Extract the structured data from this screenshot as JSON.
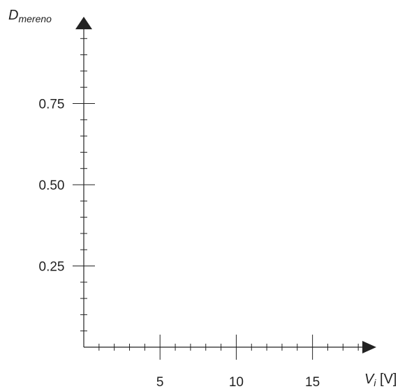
{
  "chart_data": {
    "type": "line",
    "title": "",
    "xlabel": {
      "symbol": "V",
      "subscript": "i",
      "unit": " [V]"
    },
    "ylabel": {
      "symbol": "D",
      "subscript": "mereno"
    },
    "xlim": [
      0,
      19
    ],
    "ylim": [
      0,
      1
    ],
    "x_major_ticks": [
      5,
      10,
      15
    ],
    "x_tick_labels": [
      "5",
      "10",
      "15"
    ],
    "x_minor_step": 1,
    "y_major_ticks": [
      0.25,
      0.5,
      0.75
    ],
    "y_tick_labels": [
      "0.25",
      "0.50",
      "0.75"
    ],
    "y_minor_step": 0.05,
    "series": [],
    "grid": false,
    "legend": "none"
  }
}
